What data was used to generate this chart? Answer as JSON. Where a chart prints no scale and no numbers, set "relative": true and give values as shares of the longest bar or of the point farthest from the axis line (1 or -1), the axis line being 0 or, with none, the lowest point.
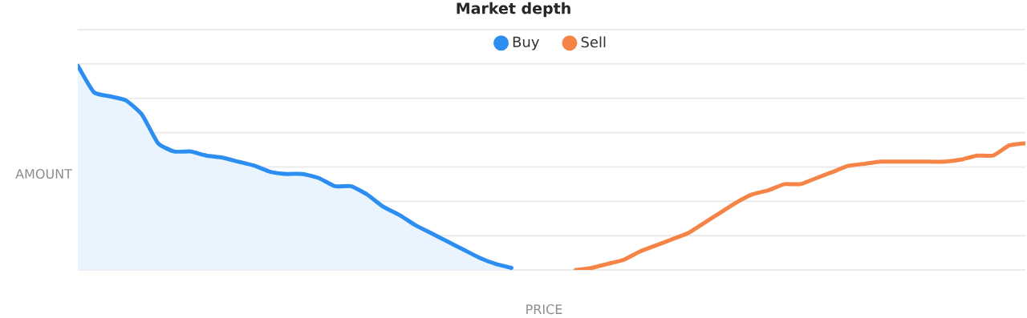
{
  "chart_data": {
    "type": "area",
    "title": "Market depth",
    "xlabel": "PRICE",
    "ylabel": "AMOUNT",
    "relative": true,
    "grid": "y",
    "legend": "top",
    "categories": [
      null,
      null,
      null,
      null,
      null,
      null,
      null,
      null,
      null,
      null,
      null,
      null,
      null,
      null,
      null,
      null,
      null,
      null,
      null,
      null,
      null,
      null,
      null,
      null,
      null,
      null,
      null,
      null,
      null,
      null,
      null,
      null,
      null,
      null,
      null,
      null,
      null,
      null,
      null,
      null,
      null,
      null,
      null,
      null,
      null,
      null,
      null,
      null,
      null,
      null,
      null,
      null,
      null,
      null,
      null,
      null,
      null,
      null,
      null,
      null
    ],
    "series": [
      {
        "name": "Buy",
        "color": "#2d8ef2",
        "values": [
          1.0,
          0.87,
          0.85,
          0.83,
          0.76,
          0.62,
          0.58,
          0.58,
          0.56,
          0.55,
          0.53,
          0.51,
          0.48,
          0.47,
          0.47,
          0.45,
          0.41,
          0.41,
          0.37,
          0.31,
          0.27,
          0.22,
          0.18,
          0.14,
          0.1,
          0.06,
          0.03,
          0.01,
          null,
          null,
          null,
          null,
          null,
          null,
          null,
          null,
          null,
          null,
          null,
          null,
          null,
          null,
          null,
          null,
          null,
          null,
          null,
          null,
          null,
          null,
          null,
          null,
          null,
          null,
          null,
          null,
          null,
          null,
          null,
          null
        ]
      },
      {
        "name": "Sell",
        "type": "line",
        "color": "#f58446",
        "values": [
          null,
          null,
          null,
          null,
          null,
          null,
          null,
          null,
          null,
          null,
          null,
          null,
          null,
          null,
          null,
          null,
          null,
          null,
          null,
          null,
          null,
          null,
          null,
          null,
          null,
          null,
          null,
          null,
          null,
          null,
          null,
          0.0,
          0.01,
          0.03,
          0.05,
          0.09,
          0.12,
          0.15,
          0.18,
          0.23,
          0.28,
          0.33,
          0.37,
          0.39,
          0.42,
          0.42,
          0.45,
          0.48,
          0.51,
          0.52,
          0.53,
          0.53,
          0.53,
          0.53,
          0.53,
          0.54,
          0.56,
          0.56,
          0.61,
          0.62
        ]
      }
    ]
  }
}
